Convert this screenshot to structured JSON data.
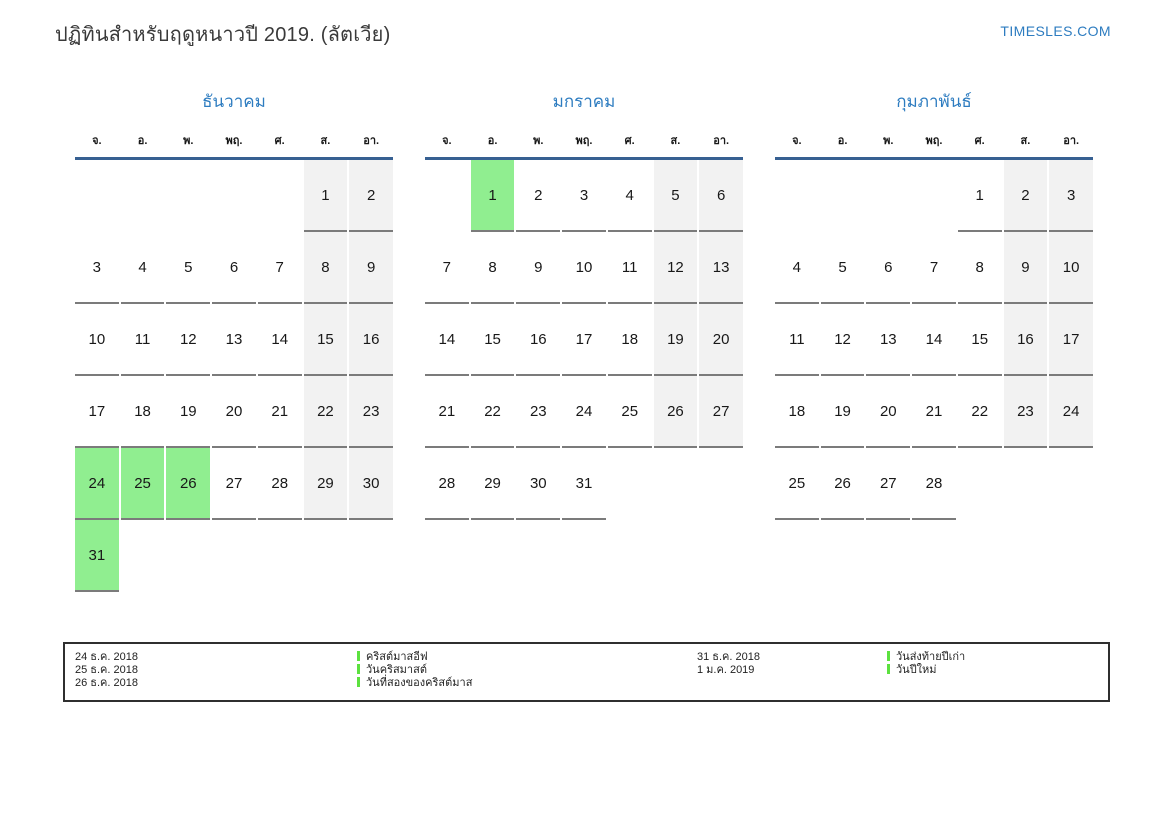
{
  "header": {
    "title": "ปฏิทินสำหรับฤดูหนาวปี 2019. (ลัตเวีย)",
    "site": "TIMESLES.COM"
  },
  "colors": {
    "accent_blue": "#2d7cc0",
    "header_rule_blue": "#376092",
    "weekend_bg": "#f2f2f2",
    "holiday_bg": "#90ee90",
    "legend_bar_green": "#5ce13f",
    "cell_underline": "#7b7b7b"
  },
  "weekdays": [
    "จ.",
    "อ.",
    "พ.",
    "พฤ.",
    "ศ.",
    "ส.",
    "อา."
  ],
  "months": [
    {
      "name": "ธันวาคม",
      "weeks": [
        [
          null,
          null,
          null,
          null,
          null,
          [
            1,
            "we"
          ],
          [
            2,
            "we"
          ]
        ],
        [
          3,
          4,
          5,
          6,
          7,
          [
            8,
            "we"
          ],
          [
            9,
            "we"
          ]
        ],
        [
          10,
          11,
          12,
          13,
          14,
          [
            15,
            "we"
          ],
          [
            16,
            "we"
          ]
        ],
        [
          17,
          18,
          19,
          20,
          21,
          [
            22,
            "we"
          ],
          [
            23,
            "we"
          ]
        ],
        [
          [
            24,
            "h"
          ],
          [
            25,
            "h"
          ],
          [
            26,
            "h"
          ],
          27,
          28,
          [
            29,
            "we"
          ],
          [
            30,
            "we"
          ]
        ],
        [
          [
            31,
            "h"
          ],
          null,
          null,
          null,
          null,
          null,
          null
        ]
      ]
    },
    {
      "name": "มกราคม",
      "weeks": [
        [
          null,
          [
            1,
            "h"
          ],
          2,
          3,
          4,
          [
            5,
            "we"
          ],
          [
            6,
            "we"
          ]
        ],
        [
          7,
          8,
          9,
          10,
          11,
          [
            12,
            "we"
          ],
          [
            13,
            "we"
          ]
        ],
        [
          14,
          15,
          16,
          17,
          18,
          [
            19,
            "we"
          ],
          [
            20,
            "we"
          ]
        ],
        [
          21,
          22,
          23,
          24,
          25,
          [
            26,
            "we"
          ],
          [
            27,
            "we"
          ]
        ],
        [
          28,
          29,
          30,
          31,
          null,
          null,
          null
        ]
      ]
    },
    {
      "name": "กุมภาพันธ์",
      "weeks": [
        [
          null,
          null,
          null,
          null,
          1,
          [
            2,
            "we"
          ],
          [
            3,
            "we"
          ]
        ],
        [
          4,
          5,
          6,
          7,
          8,
          [
            9,
            "we"
          ],
          [
            10,
            "we"
          ]
        ],
        [
          11,
          12,
          13,
          14,
          15,
          [
            16,
            "we"
          ],
          [
            17,
            "we"
          ]
        ],
        [
          18,
          19,
          20,
          21,
          22,
          [
            23,
            "we"
          ],
          [
            24,
            "we"
          ]
        ],
        [
          25,
          26,
          27,
          28,
          null,
          null,
          null
        ]
      ]
    }
  ],
  "legend": {
    "groups": [
      {
        "dates": [
          "24 ธ.ค. 2018",
          "25 ธ.ค. 2018",
          "26 ธ.ค. 2018"
        ],
        "names": [
          "คริสต์มาสอีฟ",
          "วันคริสมาสต์",
          "วันที่สองของคริสต์มาส"
        ]
      },
      {
        "dates": [
          "31 ธ.ค. 2018",
          "1 ม.ค. 2019"
        ],
        "names": [
          "วันส่งท้ายปีเก่า",
          "วันปีใหม่"
        ]
      }
    ]
  }
}
